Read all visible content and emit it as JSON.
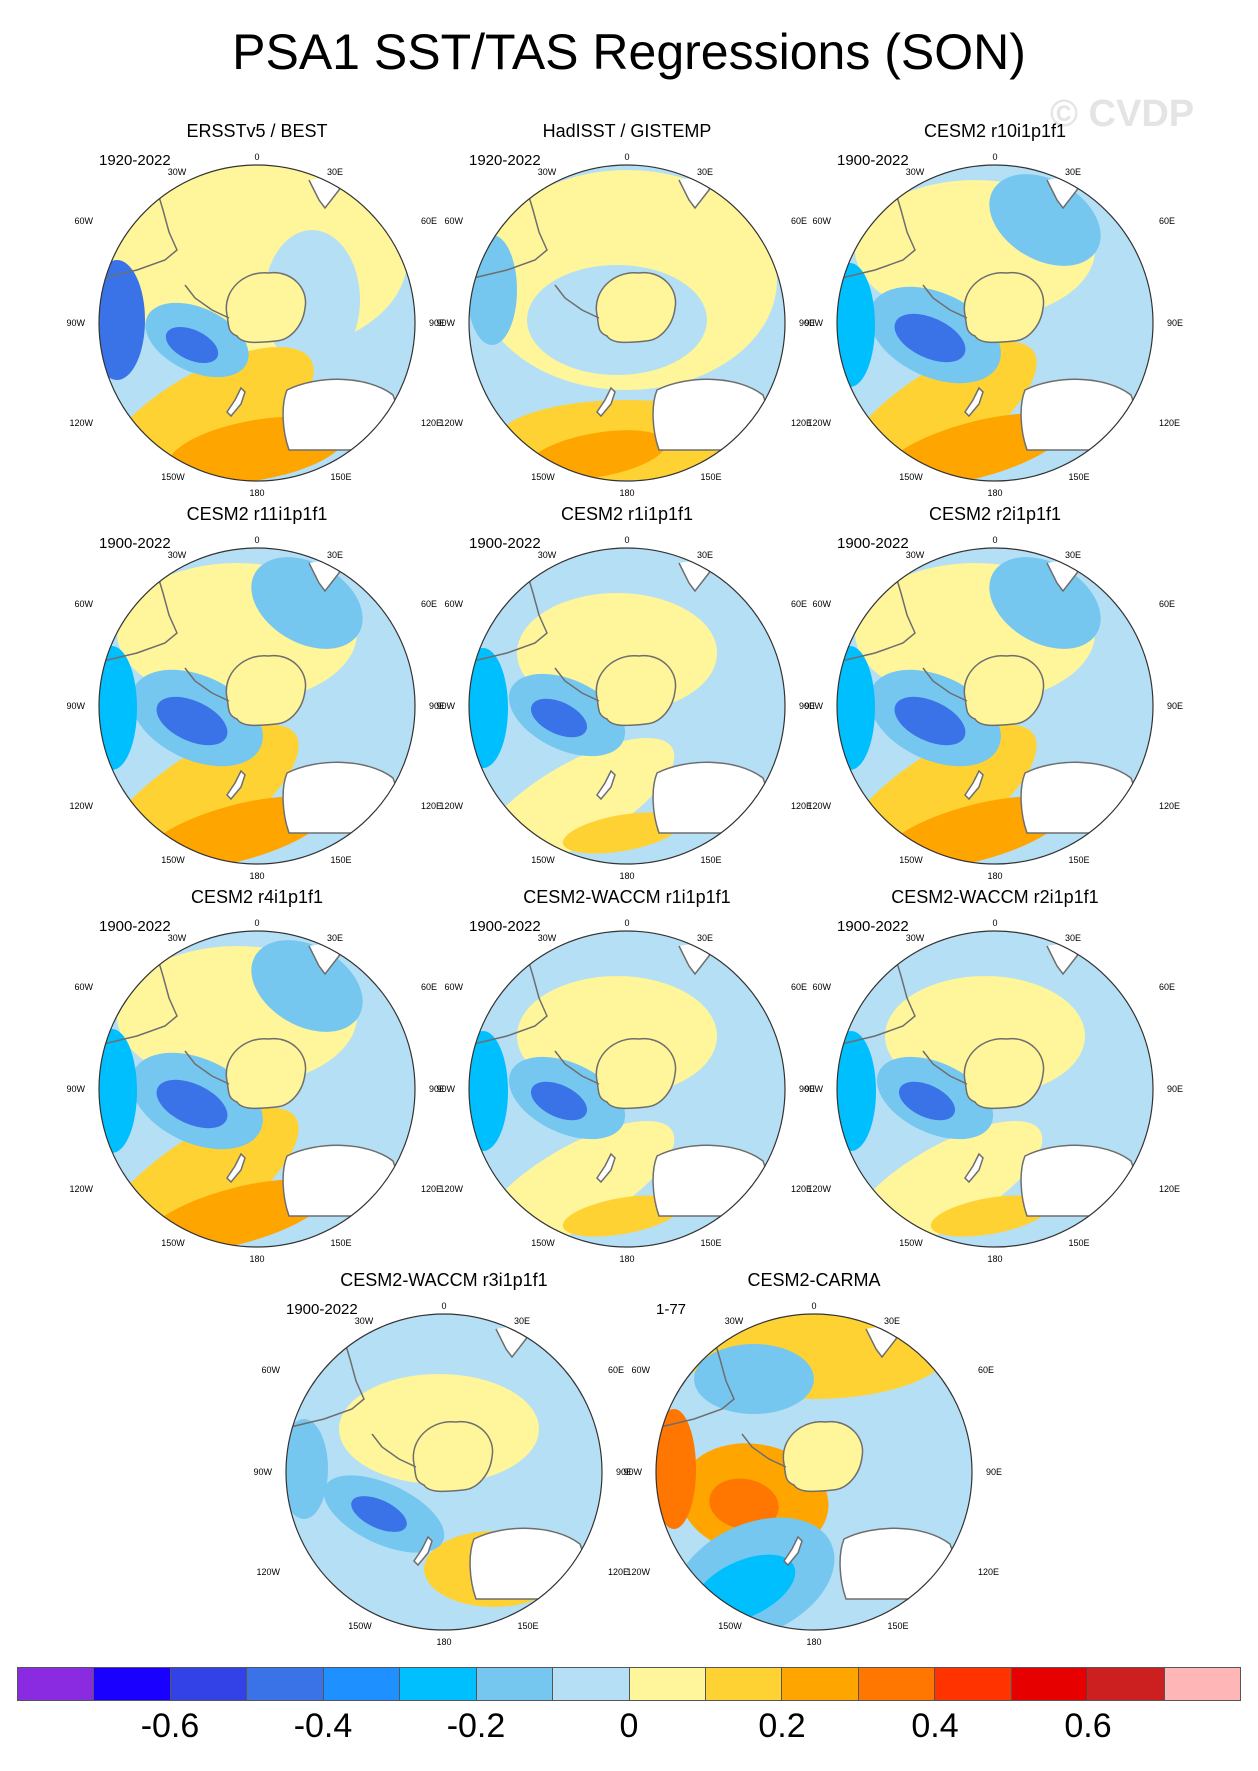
{
  "title": "PSA1 SST/TAS Regressions (SON)",
  "watermark": "© CVDP",
  "map_labels": {
    "top": "0",
    "bottom": "180",
    "ne": "30E",
    "nw": "30W",
    "e60": "60E",
    "w60": "60W",
    "e90": "90E",
    "w90": "90W",
    "e120": "120E",
    "w120": "120W",
    "e150": "150E",
    "w150": "150W"
  },
  "panels": [
    {
      "title": "ERSSTv5 / BEST",
      "years": "1920-2022",
      "pattern": "obs1"
    },
    {
      "title": "HadISST / GISTEMP",
      "years": "1920-2022",
      "pattern": "obs2"
    },
    {
      "title": "CESM2 r10i1p1f1",
      "years": "1900-2022",
      "pattern": "mod1"
    },
    {
      "title": "CESM2 r11i1p1f1",
      "years": "1900-2022",
      "pattern": "mod1"
    },
    {
      "title": "CESM2 r1i1p1f1",
      "years": "1900-2022",
      "pattern": "mod2"
    },
    {
      "title": "CESM2 r2i1p1f1",
      "years": "1900-2022",
      "pattern": "mod1"
    },
    {
      "title": "CESM2 r4i1p1f1",
      "years": "1900-2022",
      "pattern": "mod1"
    },
    {
      "title": "CESM2-WACCM r1i1p1f1",
      "years": "1900-2022",
      "pattern": "mod2"
    },
    {
      "title": "CESM2-WACCM r2i1p1f1",
      "years": "1900-2022",
      "pattern": "mod2"
    },
    {
      "title": "CESM2-WACCM r3i1p1f1",
      "years": "1900-2022",
      "pattern": "mod3"
    },
    {
      "title": "CESM2-CARMA",
      "years": "1-77",
      "pattern": "carma"
    }
  ],
  "colorbar": {
    "colors": [
      "#8a2be2",
      "#1a00ff",
      "#3342e6",
      "#3a73e8",
      "#1e90ff",
      "#00bfff",
      "#76c7f0",
      "#b5dff5",
      "#fff59a",
      "#ffd233",
      "#ffa500",
      "#ff7700",
      "#ff3300",
      "#e60000",
      "#cc1f1f",
      "#ffb6b6"
    ],
    "tick_labels": [
      "-0.6",
      "-0.4",
      "-0.2",
      "0",
      "0.2",
      "0.4",
      "0.6"
    ]
  },
  "colors": {
    "land": "#fff59a",
    "ocean_light": "#b5dff5",
    "ocean_mid": "#76c7f0",
    "cool_blue": "#3a73e8",
    "bright_blue": "#00bfff",
    "warm_orange": "#ffa500",
    "warm_yellow": "#ffd233",
    "coast": "#6e6e6e"
  }
}
